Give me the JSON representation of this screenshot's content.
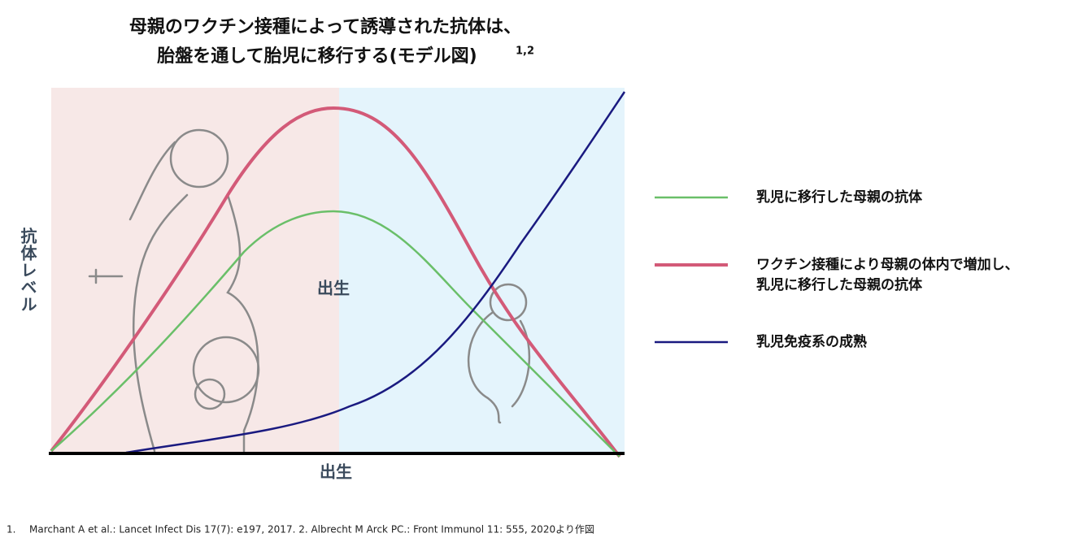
{
  "title": {
    "line1": "母親のワクチン接種によって誘導された抗体は、",
    "line2": "胎盤を通して胎児に移行する(モデル図)",
    "superscript": "1,2"
  },
  "y_label": "抗体レベル",
  "center_label": "出生",
  "x_label": "出生",
  "legend": [
    {
      "lines": [
        "乳児に移行した母親の抗体"
      ],
      "color": "#6abf69"
    },
    {
      "lines": [
        "ワクチン接種により母親の体内で増加し、",
        "乳児に移行した母親の抗体"
      ],
      "color": "#d35a78"
    },
    {
      "lines": [
        "乳児免疫系の成熟"
      ],
      "color": "#1a1a80"
    }
  ],
  "footnote": {
    "number": "1.",
    "text": "Marchant A et al.: Lancet Infect Dis 17(7): e197, 2017. 2. Albrecht M Arck PC.: Front Immunol 11: 555, 2020より作図"
  }
}
